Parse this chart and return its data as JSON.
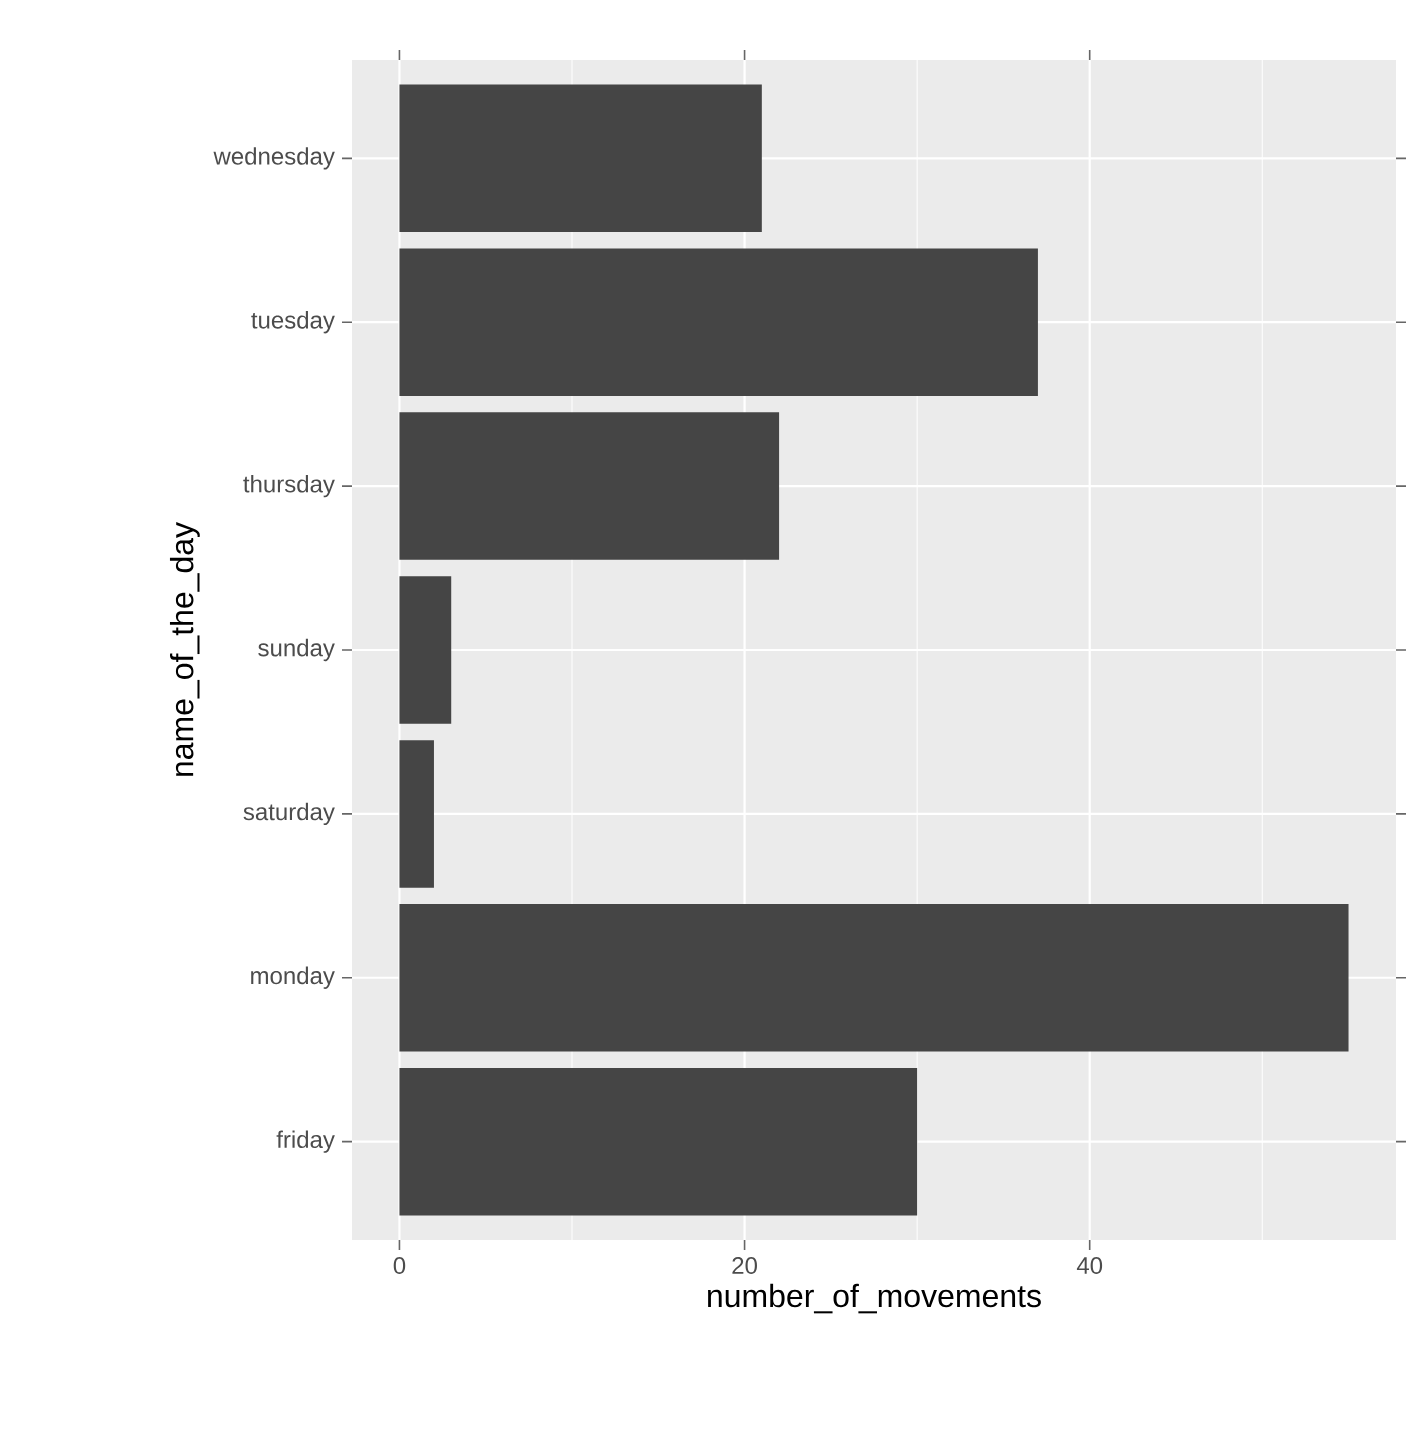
{
  "chart_data": {
    "type": "bar",
    "orientation": "horizontal",
    "categories": [
      "wednesday",
      "tuesday",
      "thursday",
      "sunday",
      "saturday",
      "monday",
      "friday"
    ],
    "values": [
      21,
      37,
      22,
      3,
      2,
      55,
      30
    ],
    "color": "#454545",
    "xlabel": "number_of_movements",
    "ylabel": "name_of_the_day",
    "xlim": [
      -2.75,
      57.75
    ],
    "xticks": [
      0,
      20,
      40
    ],
    "grid": true
  }
}
